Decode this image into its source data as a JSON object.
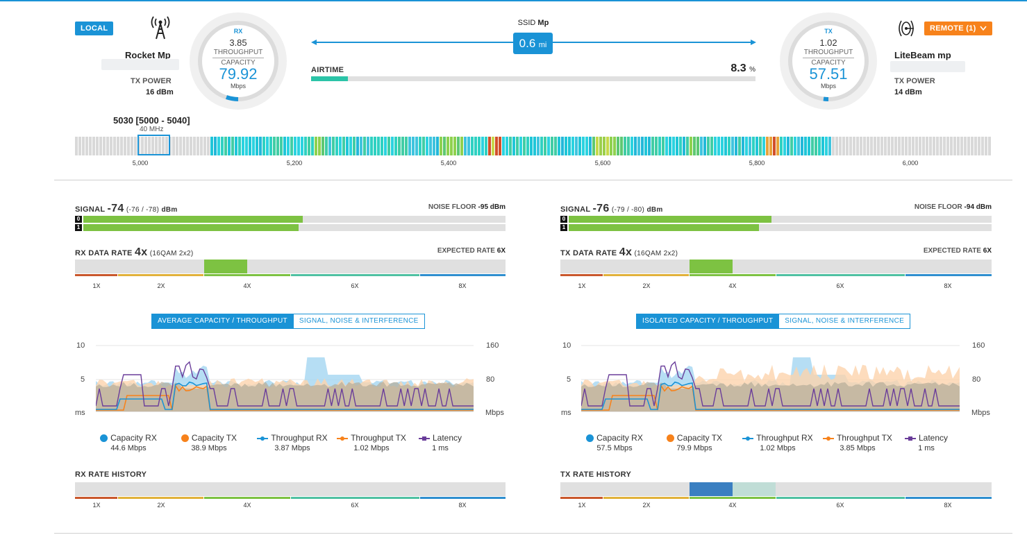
{
  "header": {
    "local_badge": "LOCAL",
    "remote_badge": "REMOTE (1)",
    "ssid_label": "SSID",
    "ssid_value": "Mp",
    "distance_value": "0.6",
    "distance_unit": "mi",
    "airtime_label": "AIRTIME",
    "airtime_value": "8.3",
    "airtime_unit": "%",
    "airtime_fraction": 0.083
  },
  "local": {
    "name": "Rocket Mp",
    "tx_power_label": "TX POWER",
    "tx_power_value": "16 dBm",
    "gauge": {
      "dir": "RX",
      "throughput": "3.85",
      "throughput_label": "THROUGHPUT",
      "capacity_label": "CAPACITY",
      "capacity": "79.92",
      "unit": "Mbps"
    }
  },
  "remote": {
    "name": "LiteBeam mp",
    "tx_power_label": "TX POWER",
    "tx_power_value": "14 dBm",
    "gauge": {
      "dir": "TX",
      "throughput": "1.02",
      "throughput_label": "THROUGHPUT",
      "capacity_label": "CAPACITY",
      "capacity": "57.51",
      "unit": "Mbps"
    }
  },
  "spectrum": {
    "freq_label": "5030 [5000 - 5040]",
    "width_label": "40 MHz",
    "ticks": [
      "5,000",
      "5,200",
      "5,400",
      "5,600",
      "5,800",
      "6,000"
    ]
  },
  "rate_ticks": [
    "1X",
    "2X",
    "4X",
    "6X",
    "8X"
  ],
  "left": {
    "signal_label": "SIGNAL",
    "signal_value": "-74",
    "signal_chains": "(-76 / -78)",
    "signal_unit": "dBm",
    "noise_label": "NOISE FLOOR",
    "noise_value": "-95 dBm",
    "chains": [
      {
        "id": "0",
        "fraction": 0.52
      },
      {
        "id": "1",
        "fraction": 0.51
      }
    ],
    "rate_label": "RX DATA RATE",
    "rate_value": "4x",
    "rate_detail": "(16QAM 2x2)",
    "expected_label": "EXPECTED RATE",
    "expected_value": "6X",
    "tabs": [
      "AVERAGE CAPACITY / THROUGHPUT",
      "SIGNAL, NOISE & INTERFERENCE"
    ],
    "axis": {
      "l_top": "10",
      "l_mid": "5",
      "l_bot": "ms",
      "r_top": "160",
      "r_mid": "80",
      "r_bot": "Mbps"
    },
    "legend": [
      {
        "name": "Capacity RX",
        "value": "44.6 Mbps"
      },
      {
        "name": "Capacity TX",
        "value": "38.9 Mbps"
      },
      {
        "name": "Throughput RX",
        "value": "3.87 Mbps"
      },
      {
        "name": "Throughput TX",
        "value": "1.02 Mbps"
      },
      {
        "name": "Latency",
        "value": "1 ms"
      }
    ],
    "history_label": "RX RATE HISTORY"
  },
  "right": {
    "signal_label": "SIGNAL",
    "signal_value": "-76",
    "signal_chains": "(-79 / -80)",
    "signal_unit": "dBm",
    "noise_label": "NOISE FLOOR",
    "noise_value": "-94 dBm",
    "chains": [
      {
        "id": "0",
        "fraction": 0.48
      },
      {
        "id": "1",
        "fraction": 0.45
      }
    ],
    "rate_label": "TX DATA RATE",
    "rate_value": "4x",
    "rate_detail": "(16QAM 2x2)",
    "expected_label": "EXPECTED RATE",
    "expected_value": "6X",
    "tabs": [
      "ISOLATED CAPACITY / THROUGHPUT",
      "SIGNAL, NOISE & INTERFERENCE"
    ],
    "axis": {
      "l_top": "10",
      "l_mid": "5",
      "l_bot": "ms",
      "r_top": "160",
      "r_mid": "80",
      "r_bot": "Mbps"
    },
    "legend": [
      {
        "name": "Capacity RX",
        "value": "57.5 Mbps"
      },
      {
        "name": "Capacity TX",
        "value": "79.9 Mbps"
      },
      {
        "name": "Throughput RX",
        "value": "1.02 Mbps"
      },
      {
        "name": "Throughput TX",
        "value": "3.85 Mbps"
      },
      {
        "name": "Latency",
        "value": "1 ms"
      }
    ],
    "history_label": "TX RATE HISTORY"
  },
  "colors": {
    "accent": "#1a93d6",
    "orange": "#f7821b",
    "green": "#7dc242",
    "capacity_rx": "#a9d8f2",
    "capacity_tx": "#fcd3ad",
    "latency": "#6a3d9a"
  }
}
